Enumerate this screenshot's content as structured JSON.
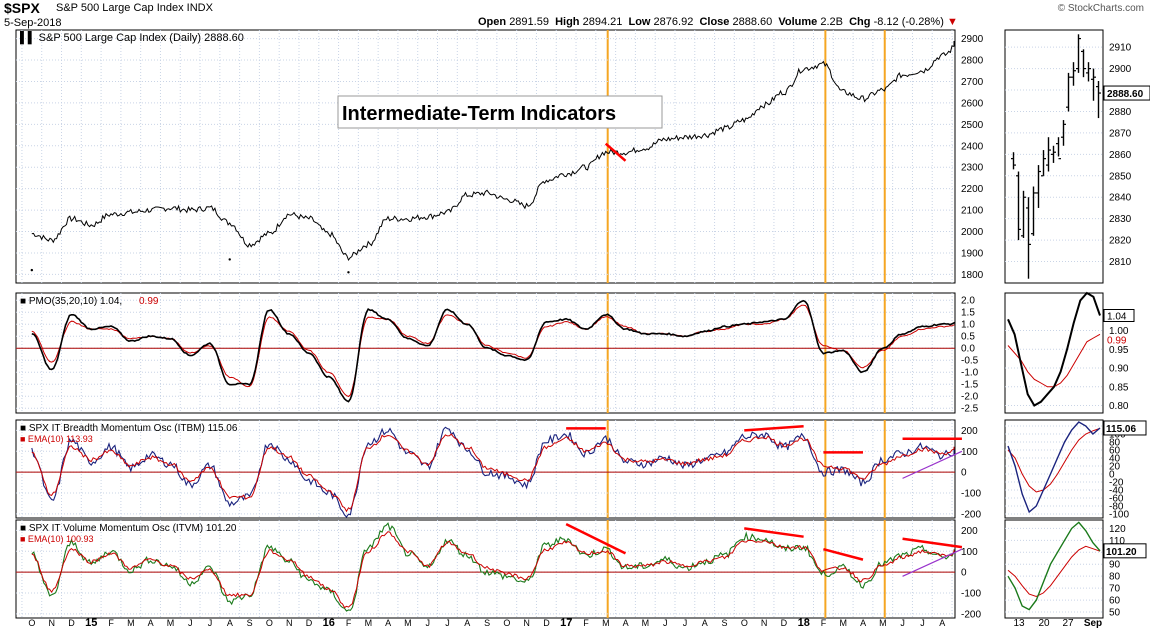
{
  "header": {
    "symbol": "$SPX",
    "name": "S&P 500 Large Cap Index INDX",
    "date": "5-Sep-2018",
    "copyright": "© StockCharts.com",
    "open_label": "Open",
    "open": "2891.59",
    "high_label": "High",
    "high": "2894.21",
    "low_label": "Low",
    "low": "2876.92",
    "close_label": "Close",
    "close": "2888.60",
    "volume_label": "Volume",
    "volume": "2.2B",
    "chg_label": "Chg",
    "chg": "-8.12 (-0.28%)"
  },
  "colors": {
    "price": "#000000",
    "pmo": "#000000",
    "pmo_signal": "#cc0000",
    "itbm": "#1a237e",
    "itbm_ema": "#cc0000",
    "itvm": "#1b7a1b",
    "itvm_ema": "#cc0000",
    "annotation": "#ff0000",
    "trend_support": "#9933cc",
    "vertical_marker": "#f5a623",
    "zero_line": "#aa0000",
    "grid": "#c9d4e6"
  },
  "annotation_box": "Intermediate-Term Indicators",
  "x_axis": {
    "labels": [
      "O",
      "N",
      "D",
      "15",
      "F",
      "M",
      "A",
      "M",
      "J",
      "J",
      "A",
      "S",
      "O",
      "N",
      "D",
      "16",
      "F",
      "M",
      "A",
      "M",
      "J",
      "J",
      "A",
      "S",
      "O",
      "N",
      "D",
      "17",
      "F",
      "M",
      "A",
      "M",
      "J",
      "J",
      "A",
      "S",
      "O",
      "N",
      "D",
      "18",
      "F",
      "M",
      "A",
      "M",
      "J",
      "J",
      "A",
      "S"
    ],
    "bold_labels": [
      "15",
      "16",
      "17",
      "18"
    ]
  },
  "side_x_axis": {
    "labels": [
      "13",
      "20",
      "27",
      "Sep"
    ]
  },
  "chart_data": [
    {
      "type": "line",
      "panel": "price",
      "title": "S&P 500 Large Cap Index (Daily) 2888.60",
      "y_ticks": [
        1800,
        1900,
        2000,
        2100,
        2200,
        2300,
        2400,
        2500,
        2600,
        2700,
        2800,
        2900
      ],
      "ylim": [
        1760,
        2940
      ],
      "x": [
        "2014-10",
        "2014-11",
        "2014-12",
        "2015-01",
        "2015-02",
        "2015-03",
        "2015-04",
        "2015-05",
        "2015-06",
        "2015-07",
        "2015-08",
        "2015-09",
        "2015-10",
        "2015-11",
        "2015-12",
        "2016-01",
        "2016-02",
        "2016-03",
        "2016-04",
        "2016-05",
        "2016-06",
        "2016-07",
        "2016-08",
        "2016-09",
        "2016-10",
        "2016-11",
        "2016-12",
        "2017-01",
        "2017-02",
        "2017-03",
        "2017-04",
        "2017-05",
        "2017-06",
        "2017-07",
        "2017-08",
        "2017-09",
        "2017-10",
        "2017-11",
        "2017-12",
        "2018-01",
        "2018-02",
        "2018-03",
        "2018-04",
        "2018-05",
        "2018-06",
        "2018-07",
        "2018-08",
        "2018-09"
      ],
      "values": [
        1990,
        1960,
        2060,
        2030,
        2080,
        2090,
        2100,
        2110,
        2100,
        2110,
        2040,
        1940,
        1990,
        2080,
        2060,
        1990,
        1880,
        1940,
        2060,
        2060,
        2070,
        2090,
        2170,
        2180,
        2150,
        2120,
        2240,
        2270,
        2300,
        2370,
        2370,
        2390,
        2430,
        2440,
        2450,
        2480,
        2520,
        2590,
        2650,
        2760,
        2780,
        2650,
        2620,
        2660,
        2730,
        2750,
        2820,
        2888.6
      ],
      "lows": [
        {
          "x": "2014-10",
          "value": 1820
        },
        {
          "x": "2015-08",
          "value": 1870
        },
        {
          "x": "2016-02",
          "value": 1810
        }
      ],
      "trendlines": [
        {
          "from_x": "2017-03",
          "from_y": 2410,
          "to_x": "2017-04",
          "to_y": 2330,
          "color": "#ff0000"
        }
      ]
    },
    {
      "type": "ohlc",
      "panel": "price-side",
      "y_ticks": [
        2810,
        2820,
        2830,
        2840,
        2850,
        2860,
        2870,
        2880,
        2890,
        2900,
        2910
      ],
      "ylim": [
        2800,
        2918
      ],
      "last_value_label": "2888.60",
      "x": [
        "Aug 10",
        "Aug 13",
        "Aug 14",
        "Aug 15",
        "Aug 16",
        "Aug 17",
        "Aug 20",
        "Aug 21",
        "Aug 22",
        "Aug 23",
        "Aug 24",
        "Aug 27",
        "Aug 28",
        "Aug 29",
        "Aug 30",
        "Aug 31",
        "Sep 4",
        "Sep 5"
      ],
      "opens": [
        2858,
        2850,
        2822,
        2835,
        2823,
        2842,
        2850,
        2855,
        2860,
        2865,
        2868,
        2882,
        2896,
        2900,
        2908,
        2898,
        2895,
        2891.59
      ],
      "highs": [
        2861,
        2852,
        2843,
        2840,
        2845,
        2855,
        2862,
        2868,
        2864,
        2868,
        2876,
        2898,
        2903,
        2916,
        2909,
        2903,
        2900,
        2894.21
      ],
      "lows": [
        2853,
        2820,
        2821,
        2802,
        2822,
        2835,
        2850,
        2852,
        2856,
        2859,
        2864,
        2880,
        2892,
        2898,
        2896,
        2894,
        2885,
        2876.92
      ],
      "closes": [
        2855,
        2825,
        2840,
        2818,
        2842,
        2852,
        2858,
        2862,
        2861,
        2858,
        2874,
        2896,
        2899,
        2914,
        2900,
        2900,
        2896,
        2888.6
      ]
    },
    {
      "type": "line",
      "panel": "pmo",
      "title": "PMO(35,20,10)",
      "pmo_value": "1.04",
      "signal_value": "0.99",
      "y_ticks": [
        "-2.5",
        "-2.0",
        "-1.5",
        "-1.0",
        "-0.5",
        "0.0",
        "0.5",
        "1.0",
        "1.5",
        "2.0"
      ],
      "ylim": [
        -2.7,
        2.3
      ],
      "zero_line": 0,
      "x": [
        "2014-10",
        "2014-11",
        "2014-12",
        "2015-01",
        "2015-02",
        "2015-03",
        "2015-04",
        "2015-05",
        "2015-06",
        "2015-07",
        "2015-08",
        "2015-09",
        "2015-10",
        "2015-11",
        "2015-12",
        "2016-01",
        "2016-02",
        "2016-03",
        "2016-04",
        "2016-05",
        "2016-06",
        "2016-07",
        "2016-08",
        "2016-09",
        "2016-10",
        "2016-11",
        "2016-12",
        "2017-01",
        "2017-02",
        "2017-03",
        "2017-04",
        "2017-05",
        "2017-06",
        "2017-07",
        "2017-08",
        "2017-09",
        "2017-10",
        "2017-11",
        "2017-12",
        "2018-01",
        "2018-02",
        "2018-03",
        "2018-04",
        "2018-05",
        "2018-06",
        "2018-07",
        "2018-08",
        "2018-09"
      ],
      "series": [
        {
          "name": "PMO",
          "values": [
            0.6,
            -0.9,
            1.4,
            0.8,
            0.9,
            0.3,
            0.5,
            0.4,
            -0.3,
            0.2,
            -1.5,
            -1.5,
            1.6,
            0.6,
            -0.2,
            -1.2,
            -2.2,
            1.6,
            1.2,
            0.4,
            0.1,
            1.6,
            1.0,
            0.0,
            -0.3,
            -0.5,
            1.1,
            1.2,
            0.8,
            1.4,
            0.8,
            0.6,
            0.6,
            0.5,
            0.7,
            0.9,
            1.0,
            1.1,
            1.2,
            2.0,
            -0.2,
            -0.1,
            -1.0,
            0.0,
            0.6,
            0.9,
            1.0,
            1.04
          ]
        },
        {
          "name": "Signal",
          "values": [
            0.7,
            -0.6,
            1.1,
            0.8,
            0.8,
            0.4,
            0.5,
            0.4,
            -0.2,
            0.1,
            -1.2,
            -1.6,
            1.3,
            0.7,
            -0.1,
            -1.0,
            -2.0,
            1.3,
            1.2,
            0.5,
            0.2,
            1.4,
            1.0,
            0.1,
            -0.2,
            -0.4,
            0.9,
            1.1,
            0.8,
            1.3,
            0.9,
            0.6,
            0.6,
            0.5,
            0.7,
            0.8,
            1.0,
            1.0,
            1.2,
            1.8,
            0.1,
            -0.1,
            -0.8,
            -0.1,
            0.5,
            0.8,
            0.9,
            0.99
          ]
        }
      ]
    },
    {
      "type": "line",
      "panel": "pmo-side",
      "y_ticks": [
        "0.80",
        "0.85",
        "0.90",
        "0.95",
        "1.00"
      ],
      "ylim": [
        0.78,
        1.1
      ],
      "pmo_label": "1.04",
      "signal_label": "0.99",
      "series": [
        {
          "name": "PMO",
          "values": [
            1.03,
            0.99,
            0.91,
            0.83,
            0.8,
            0.81,
            0.83,
            0.85,
            0.89,
            0.95,
            1.02,
            1.08,
            1.1,
            1.09,
            1.04
          ]
        },
        {
          "name": "Signal",
          "values": [
            0.96,
            0.94,
            0.92,
            0.89,
            0.87,
            0.86,
            0.85,
            0.85,
            0.86,
            0.88,
            0.91,
            0.94,
            0.97,
            0.98,
            0.99
          ]
        }
      ]
    },
    {
      "type": "line",
      "panel": "itbm",
      "title": "SPX IT Breadth Momentum Osc (ITBM)",
      "itbm_value": "115.06",
      "ema_label": "EMA(10)",
      "ema_value": "113.93",
      "y_ticks": [
        -200,
        -100,
        0,
        100,
        200
      ],
      "ylim": [
        -220,
        250
      ],
      "zero_line": 0,
      "x": [
        "2014-10",
        "2014-11",
        "2014-12",
        "2015-01",
        "2015-02",
        "2015-03",
        "2015-04",
        "2015-05",
        "2015-06",
        "2015-07",
        "2015-08",
        "2015-09",
        "2015-10",
        "2015-11",
        "2015-12",
        "2016-01",
        "2016-02",
        "2016-03",
        "2016-04",
        "2016-05",
        "2016-06",
        "2016-07",
        "2016-08",
        "2016-09",
        "2016-10",
        "2016-11",
        "2016-12",
        "2017-01",
        "2017-02",
        "2017-03",
        "2017-04",
        "2017-05",
        "2017-06",
        "2017-07",
        "2017-08",
        "2017-09",
        "2017-10",
        "2017-11",
        "2017-12",
        "2018-01",
        "2018-02",
        "2018-03",
        "2018-04",
        "2018-05",
        "2018-06",
        "2018-07",
        "2018-08",
        "2018-09"
      ],
      "series": [
        {
          "name": "ITBM",
          "values": [
            100,
            -140,
            150,
            50,
            120,
            20,
            80,
            40,
            -60,
            30,
            -150,
            -120,
            140,
            60,
            -40,
            -100,
            -200,
            140,
            200,
            90,
            30,
            210,
            110,
            0,
            -20,
            -60,
            150,
            180,
            90,
            160,
            50,
            40,
            70,
            30,
            60,
            90,
            170,
            180,
            120,
            170,
            0,
            10,
            -50,
            60,
            90,
            120,
            80,
            115.06
          ]
        },
        {
          "name": "EMA(10)",
          "values": [
            90,
            -110,
            120,
            60,
            100,
            30,
            70,
            40,
            -40,
            20,
            -120,
            -120,
            120,
            70,
            -20,
            -90,
            -180,
            120,
            180,
            100,
            40,
            180,
            120,
            20,
            -10,
            -40,
            120,
            160,
            100,
            140,
            60,
            50,
            60,
            40,
            60,
            80,
            150,
            170,
            130,
            160,
            30,
            20,
            -30,
            40,
            80,
            110,
            90,
            113.93
          ]
        }
      ],
      "trendlines": [
        {
          "from_x": "2017-01",
          "from_y": 210,
          "to_x": "2017-03",
          "to_y": 210,
          "color": "#ff0000"
        },
        {
          "from_x": "2017-10",
          "from_y": 200,
          "to_x": "2018-01",
          "to_y": 220,
          "color": "#ff0000"
        },
        {
          "from_x": "2018-02",
          "from_y": 95,
          "to_x": "2018-04",
          "to_y": 95,
          "color": "#ff0000"
        },
        {
          "from_x": "2018-06",
          "from_y": 160,
          "to_x": "2018-09",
          "to_y": 160,
          "color": "#ff0000"
        },
        {
          "from_x": "2018-06",
          "from_y": -30,
          "to_x": "2018-09",
          "to_y": 100,
          "color": "#9933cc"
        }
      ]
    },
    {
      "type": "line",
      "panel": "itbm-side",
      "y_ticks": [
        -100,
        -80,
        -60,
        -40,
        -20,
        0,
        20,
        40,
        60,
        80,
        100,
        120
      ],
      "ylim": [
        -110,
        135
      ],
      "itbm_label": "115.06",
      "series": [
        {
          "name": "ITBM",
          "values": [
            70,
            20,
            -50,
            -95,
            -80,
            -40,
            0,
            40,
            80,
            110,
            130,
            120,
            100,
            115.06
          ]
        },
        {
          "name": "EMA(10)",
          "values": [
            60,
            40,
            0,
            -30,
            -45,
            -40,
            -25,
            0,
            30,
            60,
            85,
            100,
            108,
            113.93
          ]
        }
      ]
    },
    {
      "type": "line",
      "panel": "itvm",
      "title": "SPX IT Volume Momentum Osc (ITVM)",
      "itvm_value": "101.20",
      "ema_label": "EMA(10)",
      "ema_value": "100.93",
      "y_ticks": [
        -200,
        -100,
        0,
        100,
        200
      ],
      "ylim": [
        -220,
        250
      ],
      "zero_line": 0,
      "x": [
        "2014-10",
        "2014-11",
        "2014-12",
        "2015-01",
        "2015-02",
        "2015-03",
        "2015-04",
        "2015-05",
        "2015-06",
        "2015-07",
        "2015-08",
        "2015-09",
        "2015-10",
        "2015-11",
        "2015-12",
        "2016-01",
        "2016-02",
        "2016-03",
        "2016-04",
        "2016-05",
        "2016-06",
        "2016-07",
        "2016-08",
        "2016-09",
        "2016-10",
        "2016-11",
        "2016-12",
        "2017-01",
        "2017-02",
        "2017-03",
        "2017-04",
        "2017-05",
        "2017-06",
        "2017-07",
        "2017-08",
        "2017-09",
        "2017-10",
        "2017-11",
        "2017-12",
        "2018-01",
        "2018-02",
        "2018-03",
        "2018-04",
        "2018-05",
        "2018-06",
        "2018-07",
        "2018-08",
        "2018-09"
      ],
      "series": [
        {
          "name": "ITVM",
          "values": [
            90,
            -120,
            140,
            40,
            100,
            10,
            60,
            30,
            -50,
            20,
            -140,
            -110,
            120,
            50,
            -40,
            -90,
            -190,
            120,
            220,
            90,
            20,
            150,
            80,
            0,
            -20,
            -50,
            130,
            160,
            80,
            110,
            20,
            30,
            60,
            20,
            50,
            80,
            170,
            160,
            110,
            120,
            -10,
            20,
            -60,
            40,
            80,
            110,
            70,
            101.2
          ]
        },
        {
          "name": "EMA(10)",
          "values": [
            80,
            -90,
            110,
            50,
            90,
            20,
            60,
            30,
            -30,
            10,
            -110,
            -110,
            100,
            60,
            -20,
            -80,
            -170,
            100,
            190,
            100,
            30,
            140,
            90,
            20,
            -10,
            -30,
            110,
            140,
            90,
            100,
            30,
            30,
            50,
            30,
            50,
            70,
            150,
            150,
            120,
            120,
            10,
            20,
            -40,
            30,
            70,
            100,
            80,
            100.93
          ]
        }
      ],
      "trendlines": [
        {
          "from_x": "2017-01",
          "from_y": 230,
          "to_x": "2017-04",
          "to_y": 90,
          "color": "#ff0000"
        },
        {
          "from_x": "2017-10",
          "from_y": 210,
          "to_x": "2018-01",
          "to_y": 170,
          "color": "#ff0000"
        },
        {
          "from_x": "2018-02",
          "from_y": 110,
          "to_x": "2018-04",
          "to_y": 60,
          "color": "#ff0000"
        },
        {
          "from_x": "2018-06",
          "from_y": 160,
          "to_x": "2018-09",
          "to_y": 120,
          "color": "#ff0000"
        },
        {
          "from_x": "2018-06",
          "from_y": -20,
          "to_x": "2018-09",
          "to_y": 110,
          "color": "#9933cc"
        }
      ]
    },
    {
      "type": "line",
      "panel": "itvm-side",
      "y_ticks": [
        50,
        60,
        70,
        80,
        90,
        100,
        110,
        120
      ],
      "ylim": [
        45,
        127
      ],
      "itvm_label": "101.20",
      "series": [
        {
          "name": "ITVM",
          "values": [
            80,
            70,
            55,
            52,
            60,
            75,
            90,
            100,
            110,
            120,
            125,
            118,
            108,
            101.2
          ]
        },
        {
          "name": "EMA(10)",
          "values": [
            85,
            80,
            72,
            65,
            63,
            66,
            72,
            80,
            88,
            96,
            102,
            105,
            103,
            100.93
          ]
        }
      ]
    }
  ],
  "vertical_markers": [
    "2017-03",
    "2018-02",
    "2018-05"
  ]
}
